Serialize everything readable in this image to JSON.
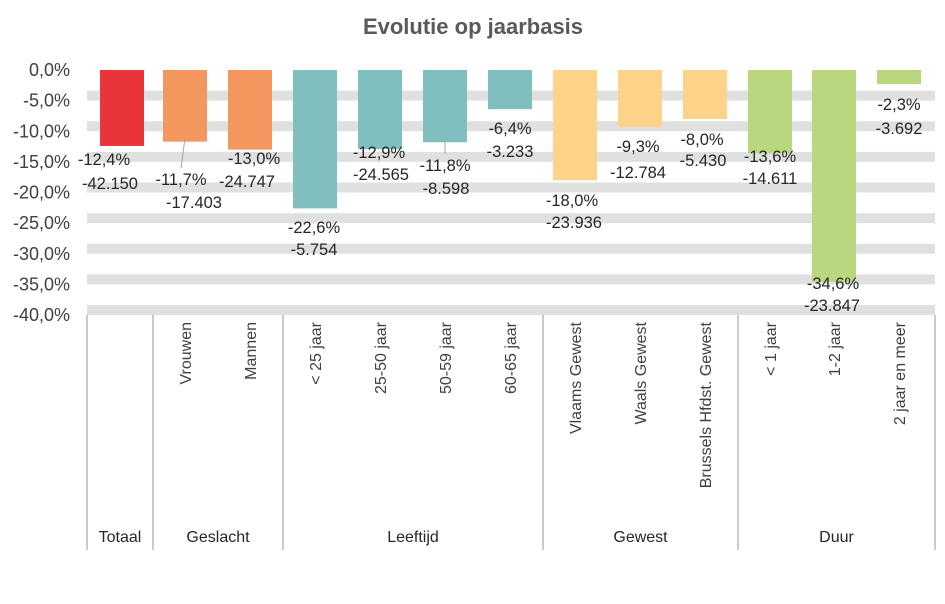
{
  "chart_data": {
    "type": "bar",
    "title": "Evolutie op jaarbasis",
    "ylim": [
      -40,
      0
    ],
    "yticks": [
      "0,0%",
      "-5,0%",
      "-10,0%",
      "-15,0%",
      "-20,0%",
      "-25,0%",
      "-30,0%",
      "-35,0%",
      "-40,0%"
    ],
    "grid": "alternating horizontal bands",
    "categories": [
      "",
      "Vrouwen",
      "Mannen",
      "< 25 jaar",
      "25-50 jaar",
      "50-59 jaar",
      "60-65 jaar",
      "Vlaams Gewest",
      "Waals Gewest",
      "Brussels Hfdst. Gewest",
      "< 1 jaar",
      "1-2 jaar",
      "2 jaar en meer"
    ],
    "values": [
      -12.4,
      -11.7,
      -13.0,
      -22.6,
      -12.9,
      -11.8,
      -6.4,
      -18.0,
      -9.3,
      -8.0,
      -13.6,
      -34.6,
      -2.3
    ],
    "pct_labels": [
      "-12,4%",
      "-11,7%",
      "-13,0%",
      "-22,6%",
      "-12,9%",
      "-11,8%",
      "-6,4%",
      "-18,0%",
      "-9,3%",
      "-8,0%",
      "-13,6%",
      "-34,6%",
      "-2,3%"
    ],
    "count_labels": [
      "-42.150",
      "-17.403",
      "-24.747",
      "-5.754",
      "-24.565",
      "-8.598",
      "-3.233",
      "-23.936",
      "-12.784",
      "-5.430",
      "-14.611",
      "-23.847",
      "-3.692"
    ],
    "groups": [
      {
        "name": "Totaal",
        "count": 1
      },
      {
        "name": "Geslacht",
        "count": 2
      },
      {
        "name": "Leeftijd",
        "count": 4
      },
      {
        "name": "Gewest",
        "count": 3
      },
      {
        "name": "Duur",
        "count": 3
      }
    ],
    "colors": {
      "Totaal": "#e8343a",
      "Geslacht": "#f4975f",
      "Leeftijd": "#7fbfbf",
      "Gewest": "#fdd38a",
      "Duur": "#b9d77f",
      "band": "#e0e0e0",
      "axis": "#a6a6a6"
    }
  }
}
